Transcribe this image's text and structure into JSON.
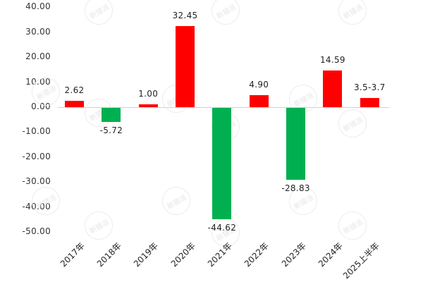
{
  "chart_data": {
    "type": "bar",
    "title": "",
    "xlabel": "",
    "ylabel": "",
    "categories": [
      "2017年",
      "2018年",
      "2019年",
      "2020年",
      "2021年",
      "2022年",
      "2023年",
      "2024年",
      "2025上半年"
    ],
    "values": [
      2.62,
      -5.72,
      1.0,
      32.45,
      -44.62,
      4.9,
      -28.83,
      14.59,
      3.6
    ],
    "data_labels": [
      "2.62",
      "-5.72",
      "1.00",
      "32.45",
      "-44.62",
      "4.90",
      "-28.83",
      "14.59",
      "3.5-3.7"
    ],
    "ylim": [
      -50,
      40
    ],
    "yticks": [
      "40.00",
      "30.00",
      "20.00",
      "10.00",
      "0.00",
      "-10.00",
      "-20.00",
      "-30.00",
      "-40.00",
      "-50.00"
    ],
    "grid": false,
    "legend": null,
    "colors": {
      "positive": "#ff0000",
      "negative": "#00b050",
      "zero_line": "#d0d0d0"
    },
    "watermark_text": "新猎派"
  }
}
